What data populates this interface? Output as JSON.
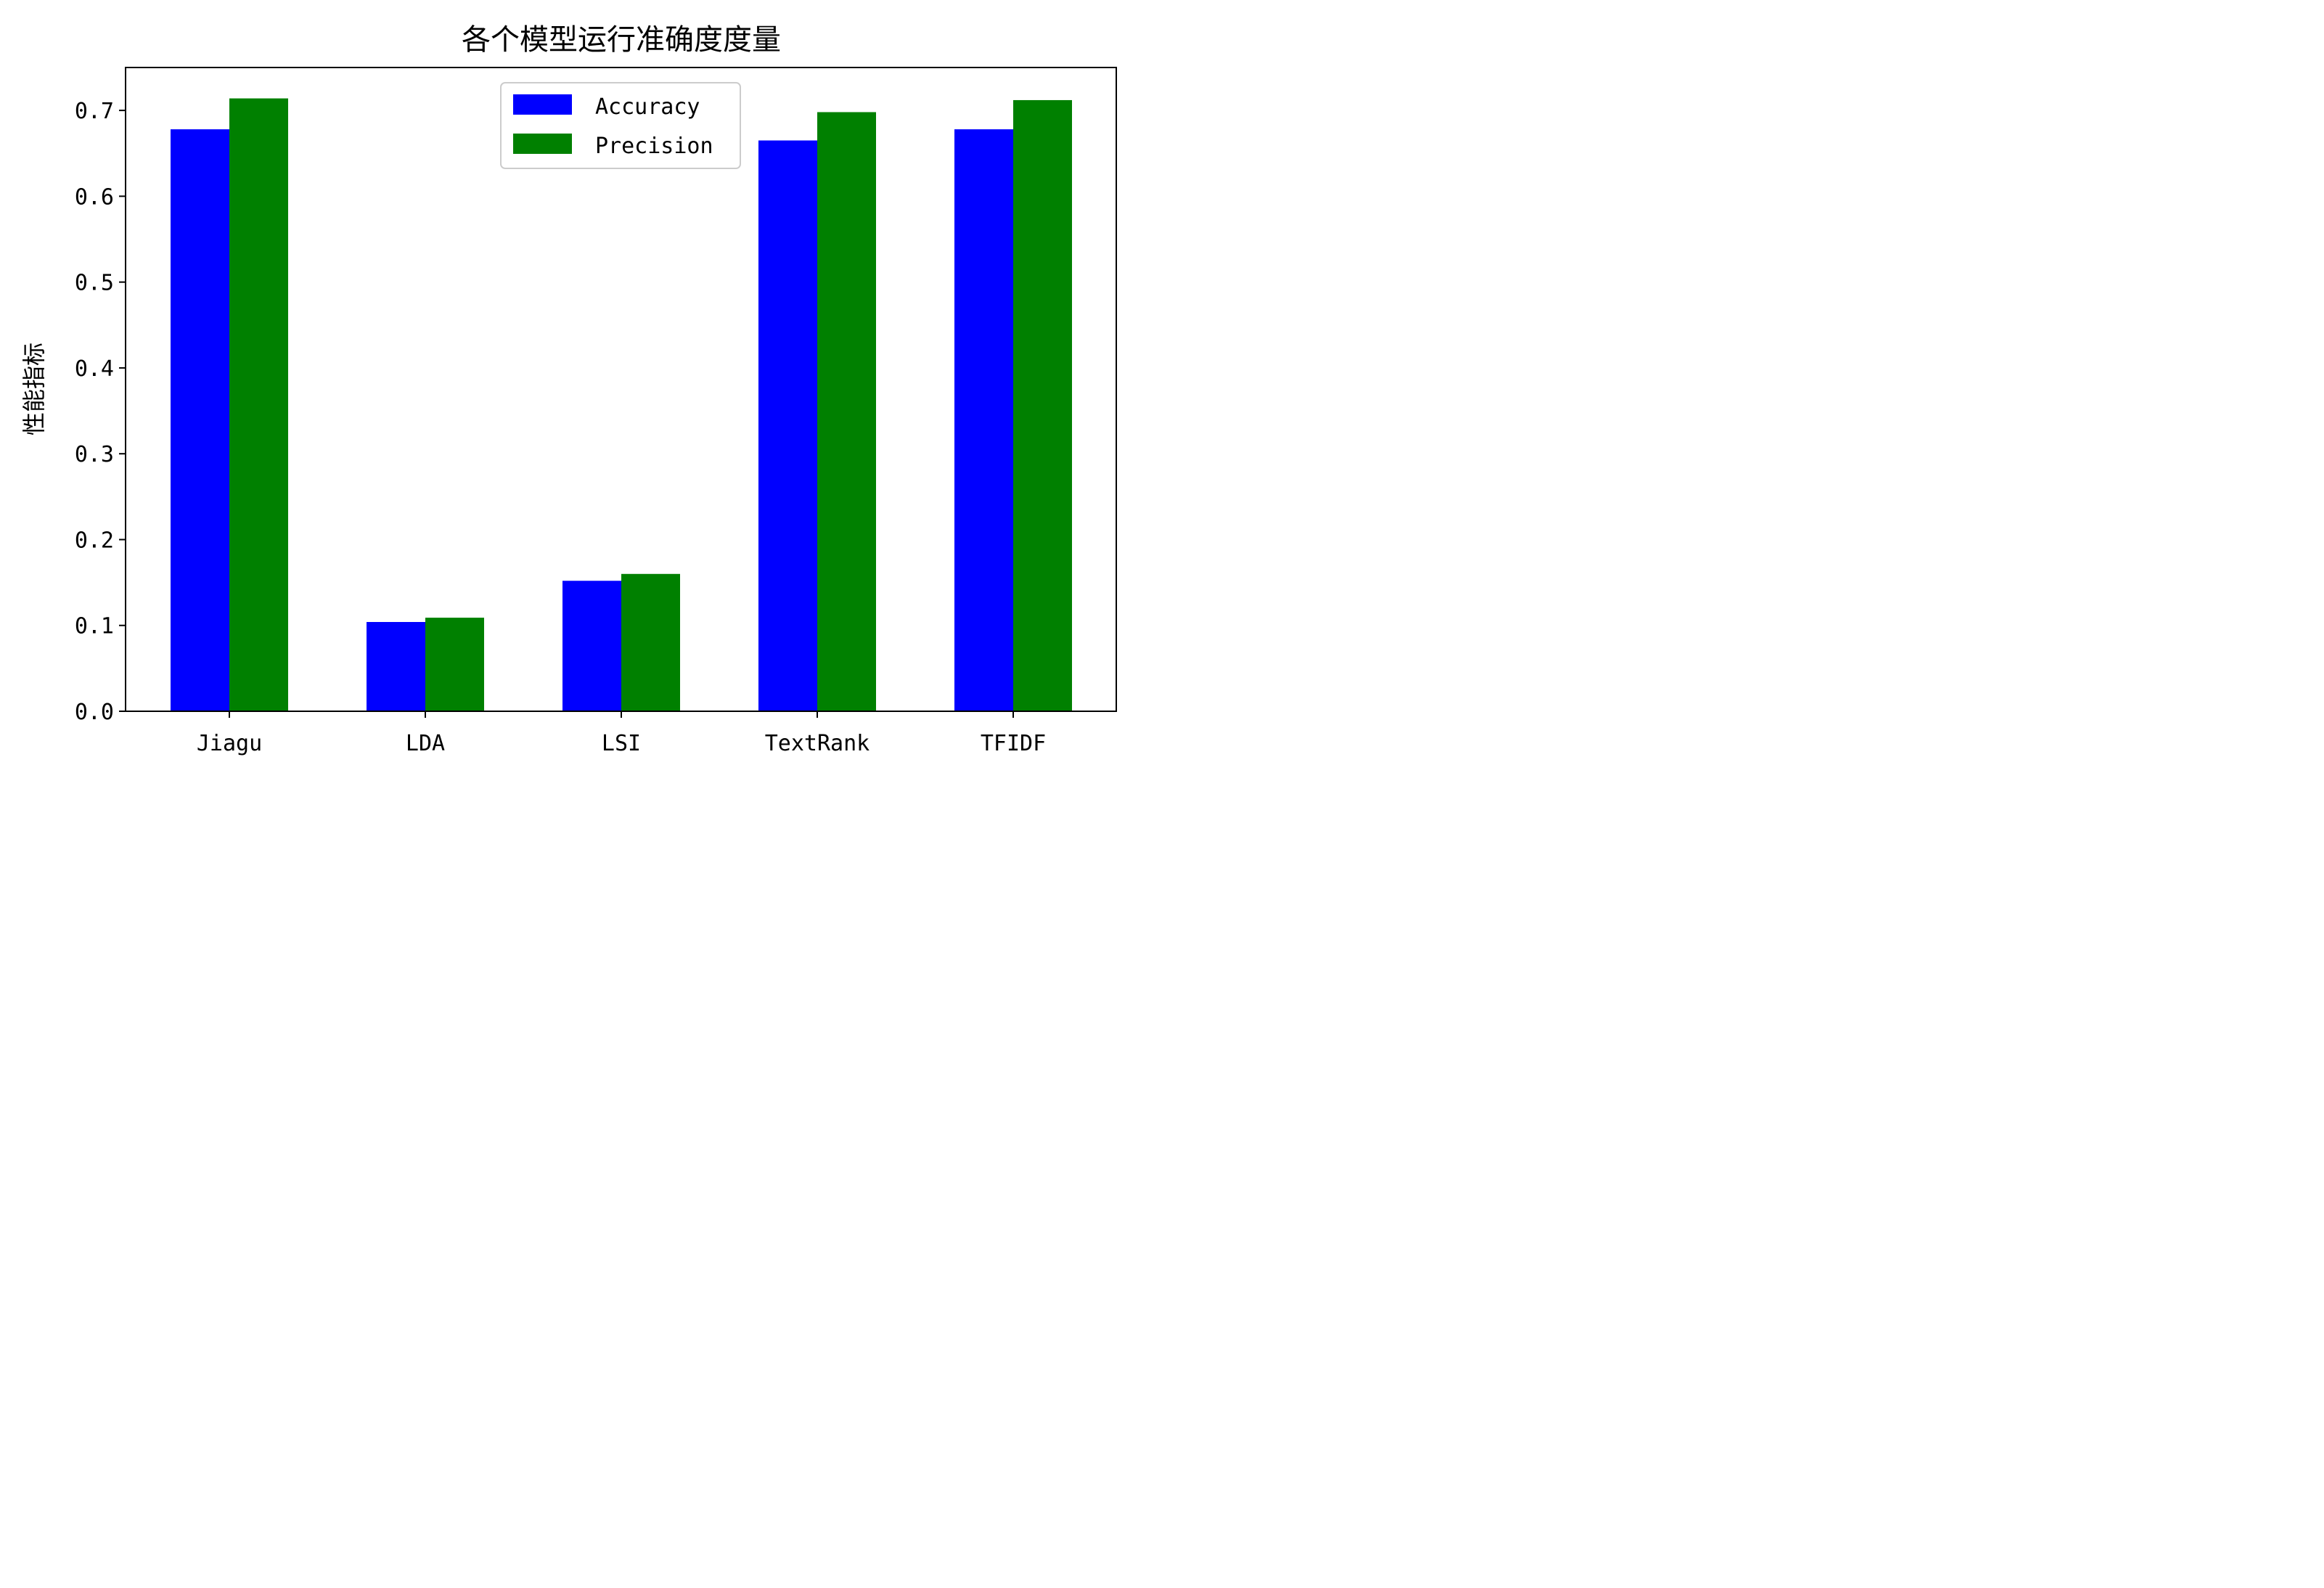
{
  "chart_data": {
    "type": "bar",
    "title": "各个模型运行准确度度量",
    "xlabel": "",
    "ylabel": "性能指标",
    "categories": [
      "Jiagu",
      "LDA",
      "LSI",
      "TextRank",
      "TFIDF"
    ],
    "series": [
      {
        "name": "Accuracy",
        "color": "#0000ff",
        "values": [
          0.678,
          0.104,
          0.152,
          0.665,
          0.678
        ]
      },
      {
        "name": "Precision",
        "color": "#008000",
        "values": [
          0.714,
          0.109,
          0.16,
          0.698,
          0.712
        ]
      }
    ],
    "ylim": [
      0,
      0.75
    ],
    "yticks": [
      0.0,
      0.1,
      0.2,
      0.3,
      0.4,
      0.5,
      0.6,
      0.7
    ],
    "ytick_labels": [
      "0.0",
      "0.1",
      "0.2",
      "0.3",
      "0.4",
      "0.5",
      "0.6",
      "0.7"
    ],
    "grid": false,
    "legend_position": "top-center"
  }
}
